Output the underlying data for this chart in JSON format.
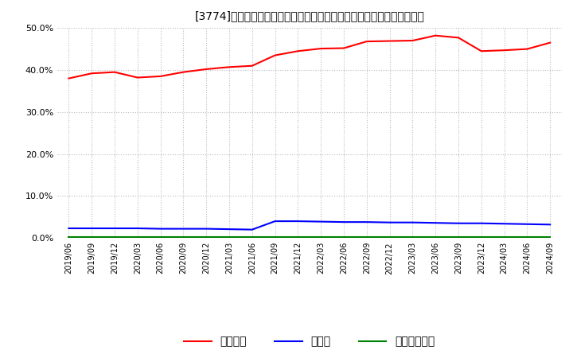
{
  "title": "[3774]　自己資本、のれん、繰延税金資産の総資産に対する比率の推移",
  "x_labels": [
    "2019/06",
    "2019/09",
    "2019/12",
    "2020/03",
    "2020/06",
    "2020/09",
    "2020/12",
    "2021/03",
    "2021/06",
    "2021/09",
    "2021/12",
    "2022/03",
    "2022/06",
    "2022/09",
    "2022/12",
    "2023/03",
    "2023/06",
    "2023/09",
    "2023/12",
    "2024/03",
    "2024/06",
    "2024/09"
  ],
  "equity": [
    38.0,
    39.2,
    39.5,
    38.2,
    38.5,
    39.5,
    40.2,
    40.7,
    41.0,
    43.5,
    44.5,
    45.1,
    45.2,
    46.8,
    46.9,
    47.0,
    48.2,
    47.7,
    44.5,
    44.7,
    45.0,
    46.5
  ],
  "noren": [
    2.3,
    2.3,
    2.3,
    2.3,
    2.2,
    2.2,
    2.2,
    2.1,
    2.0,
    4.0,
    4.0,
    3.9,
    3.8,
    3.8,
    3.7,
    3.7,
    3.6,
    3.5,
    3.5,
    3.4,
    3.3,
    3.2
  ],
  "deferred_tax": [
    0.15,
    0.15,
    0.15,
    0.15,
    0.15,
    0.15,
    0.15,
    0.15,
    0.15,
    0.15,
    0.15,
    0.15,
    0.15,
    0.15,
    0.15,
    0.15,
    0.15,
    0.15,
    0.15,
    0.15,
    0.15,
    0.15
  ],
  "equity_color": "#ff0000",
  "noren_color": "#0000ff",
  "deferred_tax_color": "#008000",
  "background_color": "#ffffff",
  "grid_color": "#bbbbbb",
  "ylim": [
    0.0,
    50.0
  ],
  "yticks": [
    0.0,
    10.0,
    20.0,
    30.0,
    40.0,
    50.0
  ],
  "legend_labels": [
    "自己資本",
    "のれん",
    "繰延税金資産"
  ]
}
